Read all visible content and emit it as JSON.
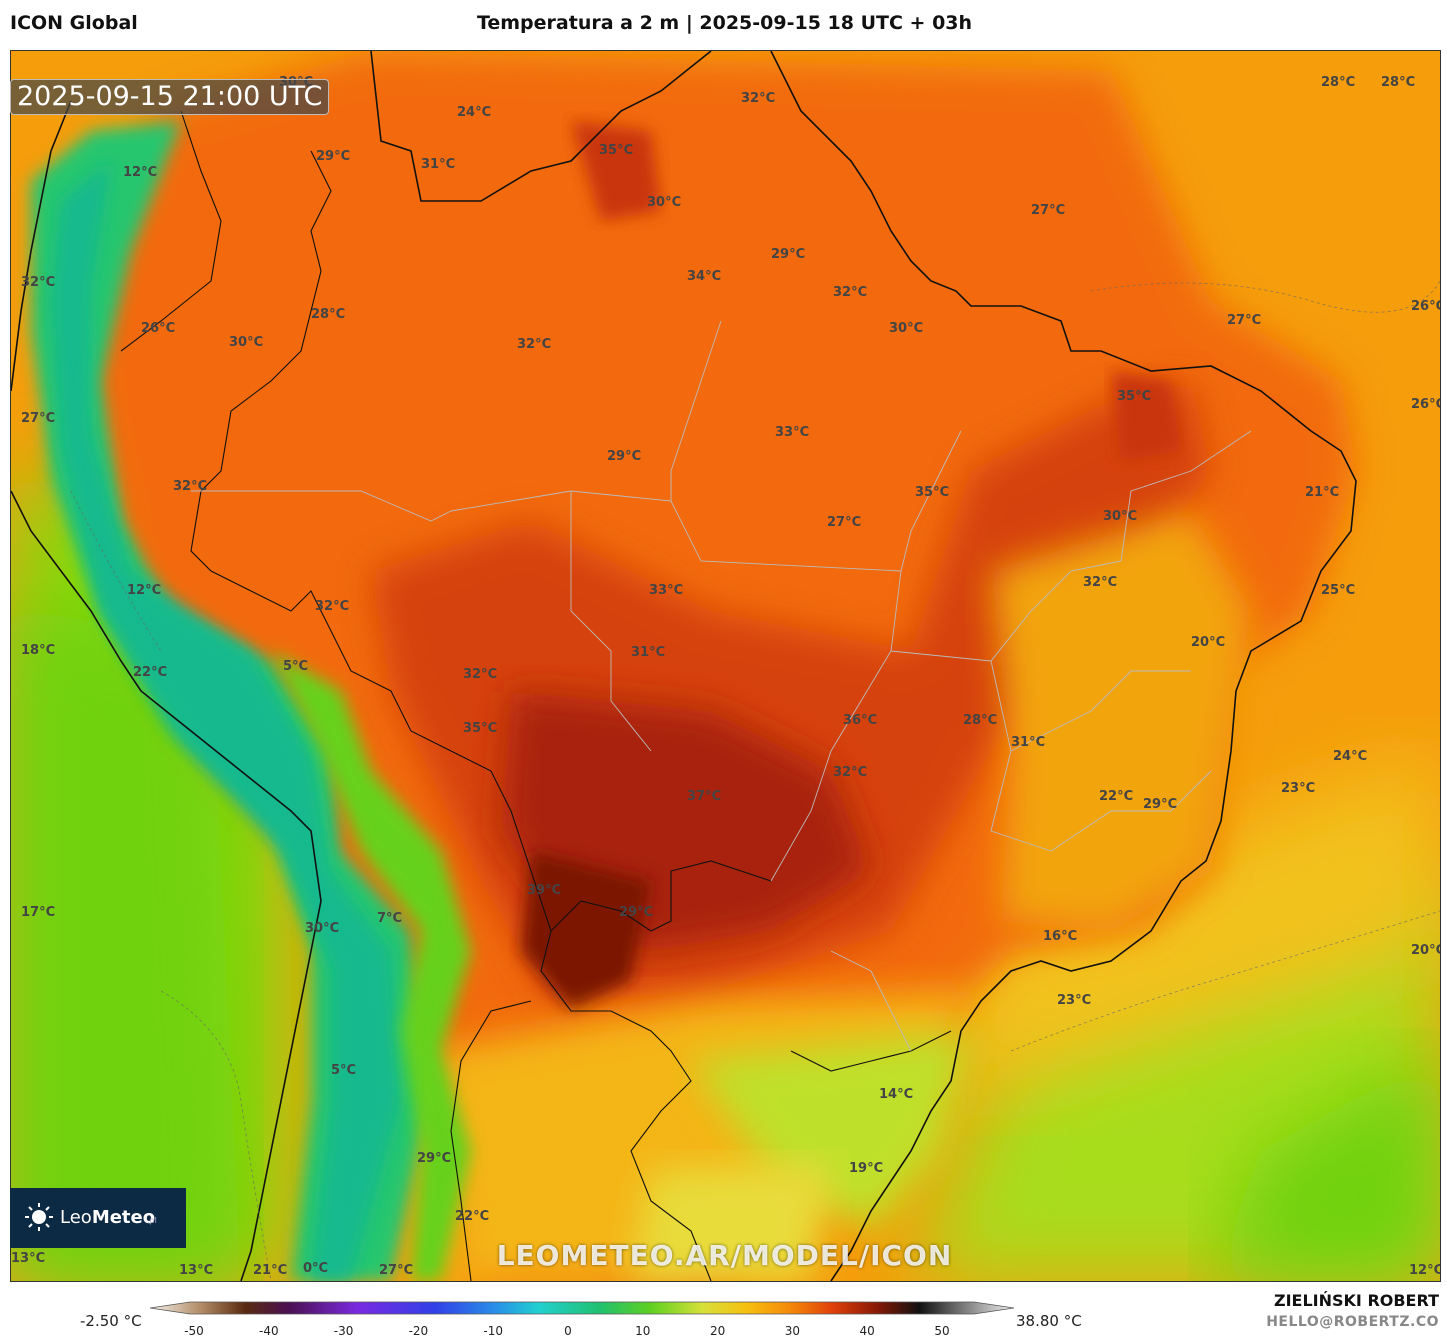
{
  "header": {
    "model": "ICON Global",
    "title": "Temperatura a 2 m | 2025-09-15 18 UTC + 03h"
  },
  "valid_time": "2025-09-15 21:00 UTC",
  "watermark": "LEOMETEO.AR/MODEL/ICON",
  "logo": {
    "name_light": "Leo",
    "name_bold": "Meteo",
    "suffix": ".pl"
  },
  "author": {
    "name": "ZIELIŃSKI ROBERT",
    "email": "HELLO@ROBERTZ.CO"
  },
  "colorbar": {
    "min_label": "-2.50 °C",
    "max_label": "38.80 °C",
    "ticks": [
      "-50",
      "-40",
      "-30",
      "-20",
      "-10",
      "0",
      "10",
      "20",
      "30",
      "40",
      "50"
    ]
  },
  "temperature_labels": [
    "30°C",
    "24°C",
    "32°C",
    "28°C",
    "28°C",
    "35°C",
    "31°C",
    "29°C",
    "12°C",
    "30°C",
    "27°C",
    "29°C",
    "34°C",
    "32°C",
    "32°C",
    "28°C",
    "26°C",
    "30°C",
    "32°C",
    "30°C",
    "27°C",
    "26°C",
    "35°C",
    "26°C",
    "27°C",
    "33°C",
    "29°C",
    "32°C",
    "35°C",
    "27°C",
    "21°C",
    "30°C",
    "12°C",
    "33°C",
    "32°C",
    "32°C",
    "25°C",
    "31°C",
    "20°C",
    "18°C",
    "5°C",
    "22°C",
    "32°C",
    "36°C",
    "28°C",
    "35°C",
    "31°C",
    "24°C",
    "37°C",
    "32°C",
    "22°C",
    "29°C",
    "23°C",
    "39°C",
    "17°C",
    "29°C",
    "30°C",
    "7°C",
    "16°C",
    "20°C",
    "23°C",
    "5°C",
    "14°C",
    "29°C",
    "19°C",
    "22°C",
    "13°C",
    "13°C",
    "21°C",
    "0°C",
    "27°C",
    "12°C"
  ],
  "colors": {
    "logo_bg": "#0d2a44",
    "hot": "#8a1a06",
    "warm": "#f26a0a",
    "mild": "#f7a20c",
    "cool": "#7ed60e",
    "cold": "#14b98e"
  }
}
